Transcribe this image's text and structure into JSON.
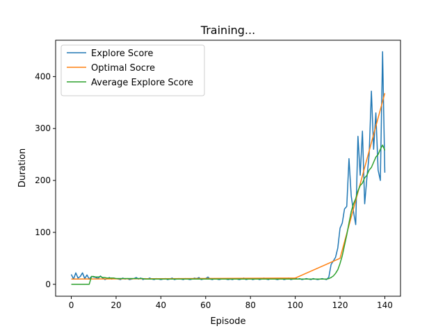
{
  "chart_data": {
    "type": "line",
    "title": "Training...",
    "xlabel": "Episode",
    "ylabel": "Duration",
    "xlim": [
      -7,
      147
    ],
    "ylim": [
      -23,
      470
    ],
    "xticks": [
      0,
      20,
      40,
      60,
      80,
      100,
      120,
      140
    ],
    "yticks": [
      0,
      100,
      200,
      300,
      400
    ],
    "grid": false,
    "legend_position": "upper left",
    "series": [
      {
        "name": "Explore Score",
        "color": "#1f77b4",
        "x": [
          0,
          1,
          2,
          3,
          4,
          5,
          6,
          7,
          8,
          9,
          10,
          11,
          12,
          13,
          14,
          15,
          16,
          17,
          18,
          19,
          20,
          21,
          22,
          23,
          24,
          25,
          26,
          27,
          28,
          29,
          30,
          31,
          32,
          33,
          34,
          35,
          36,
          37,
          38,
          39,
          40,
          41,
          42,
          43,
          44,
          45,
          46,
          47,
          48,
          49,
          50,
          51,
          52,
          53,
          54,
          55,
          56,
          57,
          58,
          59,
          60,
          61,
          62,
          63,
          64,
          65,
          66,
          67,
          68,
          69,
          70,
          71,
          72,
          73,
          74,
          75,
          76,
          77,
          78,
          79,
          80,
          81,
          82,
          83,
          84,
          85,
          86,
          87,
          88,
          89,
          90,
          91,
          92,
          93,
          94,
          95,
          96,
          97,
          98,
          99,
          100,
          101,
          102,
          103,
          104,
          105,
          106,
          107,
          108,
          109,
          110,
          111,
          112,
          113,
          114,
          115,
          116,
          117,
          118,
          119,
          120,
          121,
          122,
          123,
          124,
          125,
          126,
          127,
          128,
          129,
          130,
          131,
          132,
          133,
          134,
          135,
          136,
          137,
          138,
          139,
          140
        ],
        "values": [
          19,
          10,
          22,
          12,
          15,
          22,
          11,
          18,
          10,
          15,
          14,
          13,
          11,
          16,
          12,
          9,
          11,
          13,
          10,
          12,
          11,
          10,
          9,
          12,
          10,
          11,
          9,
          10,
          11,
          13,
          10,
          12,
          9,
          11,
          10,
          12,
          10,
          9,
          11,
          10,
          9,
          10,
          11,
          9,
          10,
          12,
          9,
          10,
          11,
          10,
          9,
          11,
          10,
          9,
          10,
          12,
          11,
          13,
          9,
          10,
          11,
          14,
          10,
          9,
          11,
          10,
          9,
          10,
          11,
          10,
          9,
          10,
          9,
          11,
          10,
          9,
          10,
          12,
          9,
          10,
          11,
          9,
          10,
          11,
          9,
          10,
          12,
          10,
          9,
          11,
          10,
          10,
          9,
          10,
          11,
          9,
          10,
          12,
          9,
          10,
          12,
          10,
          11,
          9,
          10,
          11,
          10,
          9,
          11,
          10,
          9,
          10,
          11,
          10,
          9,
          14,
          38,
          45,
          52,
          70,
          108,
          118,
          145,
          150,
          242,
          170,
          140,
          115,
          285,
          210,
          295,
          155,
          205,
          250,
          372,
          260,
          330,
          220,
          200,
          448,
          215
        ]
      },
      {
        "name": "Optimal Socre",
        "color": "#ff7f0e",
        "x": [
          0,
          100,
          120,
          140
        ],
        "values": [
          10,
          12,
          50,
          368
        ]
      },
      {
        "name": "Average Explore Score",
        "color": "#2ca02c",
        "x": [
          0,
          1,
          2,
          3,
          4,
          5,
          6,
          7,
          8,
          9,
          10,
          11,
          12,
          13,
          14,
          15,
          16,
          17,
          18,
          19,
          20,
          21,
          22,
          23,
          24,
          25,
          26,
          27,
          28,
          29,
          30,
          31,
          32,
          33,
          34,
          35,
          36,
          37,
          38,
          39,
          40,
          41,
          42,
          43,
          44,
          45,
          46,
          47,
          48,
          49,
          50,
          51,
          52,
          53,
          54,
          55,
          56,
          57,
          58,
          59,
          60,
          61,
          62,
          63,
          64,
          65,
          66,
          67,
          68,
          69,
          70,
          71,
          72,
          73,
          74,
          75,
          76,
          77,
          78,
          79,
          80,
          81,
          82,
          83,
          84,
          85,
          86,
          87,
          88,
          89,
          90,
          91,
          92,
          93,
          94,
          95,
          96,
          97,
          98,
          99,
          100,
          101,
          102,
          103,
          104,
          105,
          106,
          107,
          108,
          109,
          110,
          111,
          112,
          113,
          114,
          115,
          116,
          117,
          118,
          119,
          120,
          121,
          122,
          123,
          124,
          125,
          126,
          127,
          128,
          129,
          130,
          131,
          132,
          133,
          134,
          135,
          136,
          137,
          138,
          139,
          140
        ],
        "values": [
          0,
          0,
          0,
          0,
          0,
          0,
          0,
          0,
          0,
          15,
          15,
          14,
          14,
          15,
          13,
          13,
          12,
          12,
          12,
          12,
          11,
          11,
          11,
          11,
          11,
          11,
          11,
          11,
          11,
          11,
          11,
          11,
          11,
          10,
          10,
          10,
          10,
          10,
          10,
          10,
          10,
          10,
          10,
          10,
          10,
          10,
          10,
          10,
          10,
          10,
          10,
          10,
          10,
          10,
          10,
          10,
          10,
          10,
          10,
          10,
          10,
          10,
          10,
          10,
          10,
          10,
          10,
          10,
          10,
          10,
          10,
          10,
          10,
          10,
          10,
          10,
          10,
          10,
          10,
          10,
          10,
          10,
          10,
          10,
          10,
          10,
          10,
          10,
          10,
          10,
          10,
          10,
          10,
          10,
          10,
          10,
          10,
          10,
          10,
          10,
          10,
          10,
          10,
          10,
          10,
          10,
          10,
          10,
          10,
          10,
          10,
          10,
          10,
          10,
          10,
          11,
          13,
          16,
          21,
          28,
          40,
          55,
          75,
          95,
          118,
          140,
          155,
          165,
          180,
          190,
          195,
          205,
          210,
          220,
          225,
          235,
          245,
          250,
          260,
          268,
          258
        ]
      }
    ]
  }
}
